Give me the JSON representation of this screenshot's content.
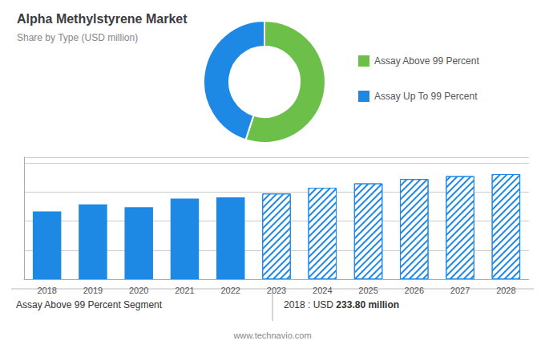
{
  "chart_data": [
    {
      "type": "pie",
      "title": "Alpha Methylstyrene Market",
      "subtitle": "Share by Type (USD million)",
      "categories": [
        "Assay Above 99 Percent",
        "Assay Up To 99 Percent"
      ],
      "values": [
        55,
        45
      ],
      "colors": [
        "#6cc04a",
        "#1e88e5"
      ],
      "legend": "right"
    },
    {
      "type": "bar",
      "categories": [
        "2018",
        "2019",
        "2020",
        "2021",
        "2022",
        "2023",
        "2024",
        "2025",
        "2026",
        "2027",
        "2028"
      ],
      "series": [
        {
          "color": "#1e88e5",
          "values": [
            233.8,
            258,
            248,
            278,
            282,
            null,
            null,
            null,
            null,
            null,
            null
          ]
        },
        {
          "color": "#1e88e5",
          "line_style": "hatched",
          "values": [
            null,
            null,
            null,
            null,
            null,
            295,
            315,
            330,
            345,
            355,
            362
          ]
        }
      ],
      "ylim": [
        0,
        420
      ],
      "yticks": [
        0,
        100,
        200,
        300,
        400
      ],
      "grid": true,
      "tick_labels": "x",
      "annotations": [
        "Assay Above 99 Percent Segment",
        "2018 : USD ",
        "233.80 million",
        "www.technavio.com"
      ]
    }
  ]
}
